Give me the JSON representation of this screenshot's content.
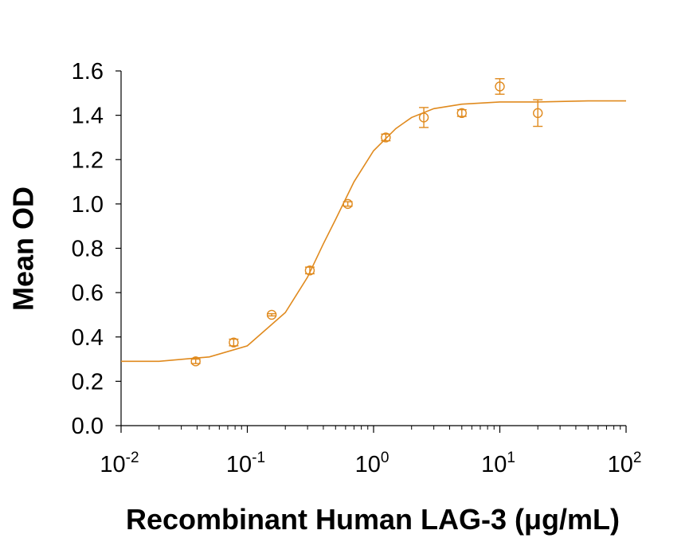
{
  "chart_data": {
    "type": "scatter",
    "ylabel": "Mean OD",
    "xlabel": "Recombinant Human LAG-3 (μg/mL)",
    "log_x": true,
    "xlim": [
      0.01,
      100
    ],
    "xticks": [
      {
        "value": 0.01,
        "label": "10",
        "exponent": "-2"
      },
      {
        "value": 0.1,
        "label": "10",
        "exponent": "-1"
      },
      {
        "value": 1,
        "label": "10",
        "exponent": "0"
      },
      {
        "value": 10,
        "label": "10",
        "exponent": "1"
      },
      {
        "value": 100,
        "label": "10",
        "exponent": "2"
      }
    ],
    "ylim": [
      0,
      1.6
    ],
    "yticks": [
      {
        "value": 0,
        "label": "0.0"
      },
      0.2,
      0.4,
      0.6,
      0.8,
      {
        "value": 1,
        "label": "1.0"
      },
      1.2,
      1.4,
      1.6
    ],
    "color": "#e08a1e",
    "x": [
      0.039,
      0.078,
      0.156,
      0.3125,
      0.625,
      1.25,
      2.5,
      5,
      10,
      20
    ],
    "values": [
      0.29,
      0.375,
      0.5,
      0.7,
      1.0,
      1.3,
      1.39,
      1.41,
      1.53,
      1.41
    ],
    "errors": [
      0.01,
      0.015,
      0.005,
      0.015,
      0.01,
      0.015,
      0.045,
      0.015,
      0.035,
      0.06
    ],
    "fit": {
      "x": [
        0.01,
        0.02,
        0.05,
        0.1,
        0.2,
        0.3,
        0.4,
        0.5,
        0.7,
        1,
        1.5,
        2,
        3,
        5,
        10,
        20,
        50,
        100
      ],
      "values": [
        0.29,
        0.29,
        0.31,
        0.36,
        0.51,
        0.67,
        0.82,
        0.93,
        1.1,
        1.24,
        1.34,
        1.39,
        1.43,
        1.45,
        1.46,
        1.46,
        1.465,
        1.465
      ]
    }
  }
}
